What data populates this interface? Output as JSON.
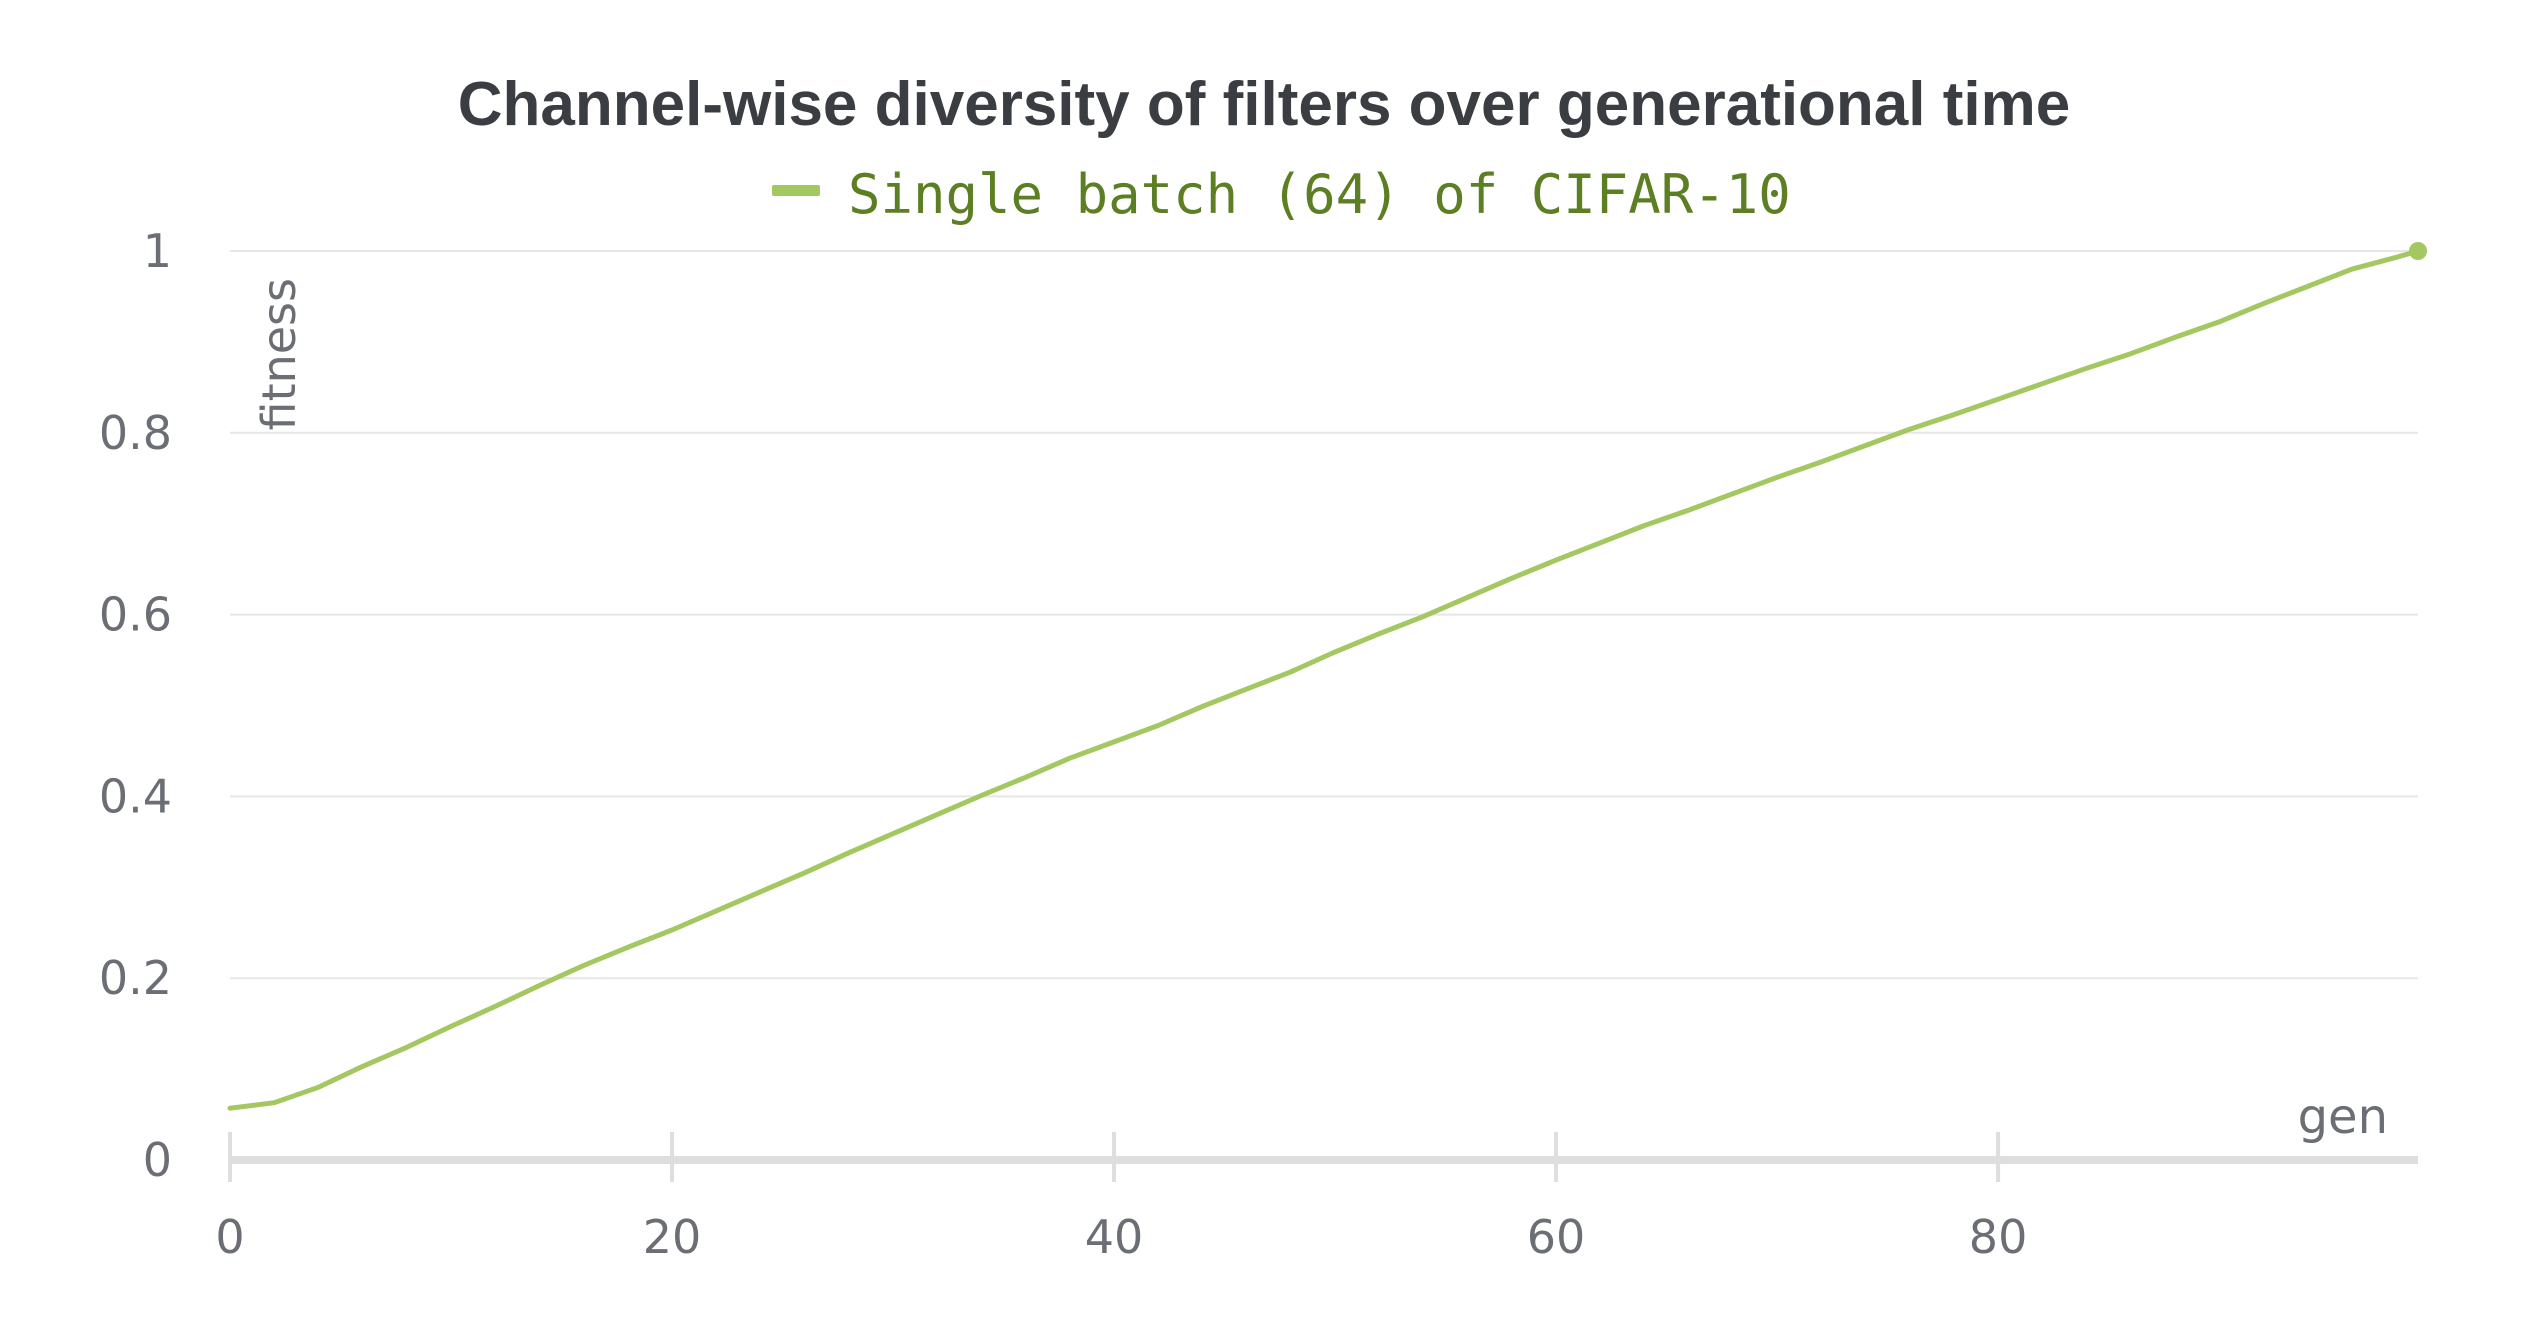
{
  "chart_data": {
    "type": "line",
    "title": "Channel-wise diversity of filters over generational time",
    "xlabel": "gen",
    "ylabel": "fitness",
    "xlim": [
      0,
      99
    ],
    "ylim": [
      0,
      1
    ],
    "x_ticks": [
      "0",
      "20",
      "40",
      "60",
      "80"
    ],
    "y_ticks": [
      "0",
      "0.2",
      "0.4",
      "0.6",
      "0.8",
      "1"
    ],
    "grid": true,
    "legend_position": "top-center",
    "series": [
      {
        "name": "Single batch (64) of CIFAR-10",
        "color": "#a3c862",
        "x": [
          0,
          2,
          4,
          6,
          8,
          10,
          12,
          14,
          16,
          18,
          20,
          22,
          24,
          26,
          28,
          30,
          32,
          34,
          36,
          38,
          40,
          42,
          44,
          46,
          48,
          50,
          52,
          54,
          56,
          58,
          60,
          62,
          64,
          66,
          68,
          70,
          72,
          74,
          76,
          78,
          80,
          82,
          84,
          86,
          88,
          90,
          92,
          94,
          96,
          98,
          99
        ],
        "y": [
          0.057,
          0.063,
          0.08,
          0.103,
          0.124,
          0.147,
          0.169,
          0.192,
          0.214,
          0.234,
          0.253,
          0.274,
          0.295,
          0.316,
          0.338,
          0.359,
          0.38,
          0.401,
          0.421,
          0.442,
          0.46,
          0.478,
          0.499,
          0.518,
          0.537,
          0.559,
          0.579,
          0.598,
          0.619,
          0.64,
          0.66,
          0.679,
          0.698,
          0.715,
          0.733,
          0.751,
          0.768,
          0.786,
          0.804,
          0.82,
          0.837,
          0.854,
          0.871,
          0.887,
          0.905,
          0.922,
          0.942,
          0.961,
          0.98,
          0.993,
          1.0
        ]
      }
    ]
  }
}
